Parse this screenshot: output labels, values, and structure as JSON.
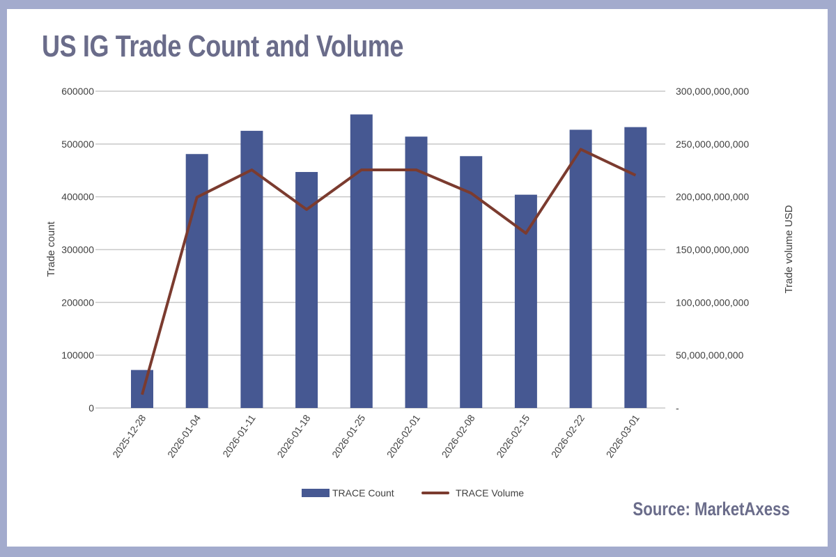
{
  "chart_data": {
    "type": "bar+line",
    "title": "US IG Trade Count and Volume",
    "source": "Source: MarketAxess",
    "categories": [
      "2025-12-28",
      "2026-01-04",
      "2026-01-11",
      "2026-01-18",
      "2026-01-25",
      "2026-02-01",
      "2026-02-08",
      "2026-02-15",
      "2026-02-22",
      "2026-03-01"
    ],
    "series": [
      {
        "name": "TRACE Count",
        "type": "bar",
        "axis": "left",
        "color": "#465892",
        "values": [
          72000,
          481000,
          525000,
          447000,
          556000,
          514000,
          477000,
          404000,
          527000,
          532000
        ]
      },
      {
        "name": "TRACE Volume",
        "type": "line",
        "axis": "right",
        "color": "#7b3b2f",
        "values": [
          12700000000,
          199600000000,
          225500000000,
          188000000000,
          225500000000,
          225500000000,
          203500000000,
          165500000000,
          245000000000,
          220400000000
        ]
      }
    ],
    "ylabel": "Trade count",
    "y2label": "Trade volume USD",
    "ylim": [
      0,
      600000
    ],
    "y2lim": [
      0,
      300000000000
    ],
    "yticks": [
      "0",
      "100000",
      "200000",
      "300000",
      "400000",
      "500000",
      "600000"
    ],
    "y2ticks": [
      "-",
      "50,000,000,000",
      "100,000,000,000",
      "150,000,000,000",
      "200,000,000,000",
      "250,000,000,000",
      "300,000,000,000"
    ],
    "grid": true,
    "legend": "bottom"
  }
}
